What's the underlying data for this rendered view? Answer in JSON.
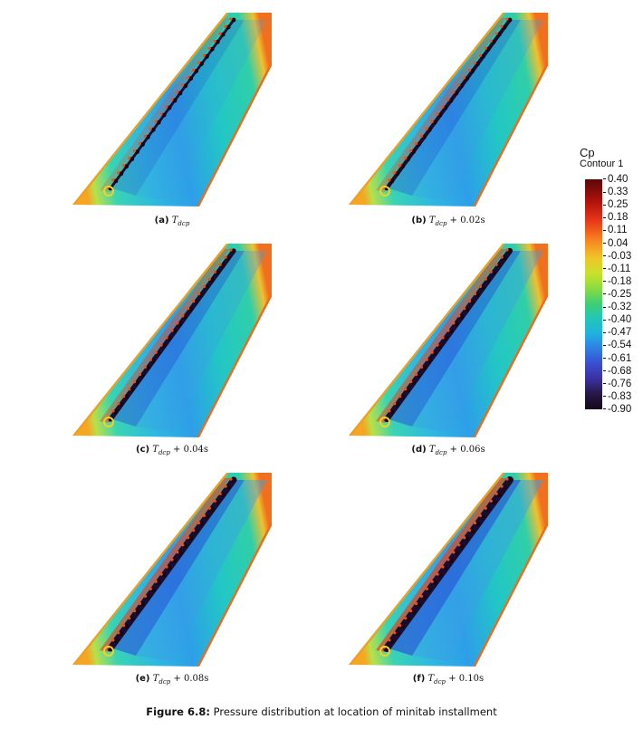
{
  "panels": [
    {
      "label": "(a)",
      "symbol": "T",
      "sub": "dcp",
      "offset": "",
      "level": 0.15
    },
    {
      "label": "(b)",
      "symbol": "T",
      "sub": "dcp",
      "offset": "+ 0.02s",
      "level": 0.35
    },
    {
      "label": "(c)",
      "symbol": "T",
      "sub": "dcp",
      "offset": "+ 0.04s",
      "level": 0.55
    },
    {
      "label": "(d)",
      "symbol": "T",
      "sub": "dcp",
      "offset": "+ 0.06s",
      "level": 0.7
    },
    {
      "label": "(e)",
      "symbol": "T",
      "sub": "dcp",
      "offset": "+ 0.08s",
      "level": 0.85
    },
    {
      "label": "(f)",
      "symbol": "T",
      "sub": "dcp",
      "offset": "+ 0.10s",
      "level": 1.0
    }
  ],
  "legend": {
    "title": "Cp",
    "subtitle": "Contour 1",
    "ticks": [
      "0.40",
      "0.33",
      "0.25",
      "0.18",
      "0.11",
      "0.04",
      "-0.03",
      "-0.11",
      "-0.18",
      "-0.25",
      "-0.32",
      "-0.40",
      "-0.47",
      "-0.54",
      "-0.61",
      "-0.68",
      "-0.76",
      "-0.83",
      "-0.90"
    ]
  },
  "figure_caption": {
    "label": "Figure 6.8:",
    "text": "Pressure distribution at location of minitab installment"
  }
}
